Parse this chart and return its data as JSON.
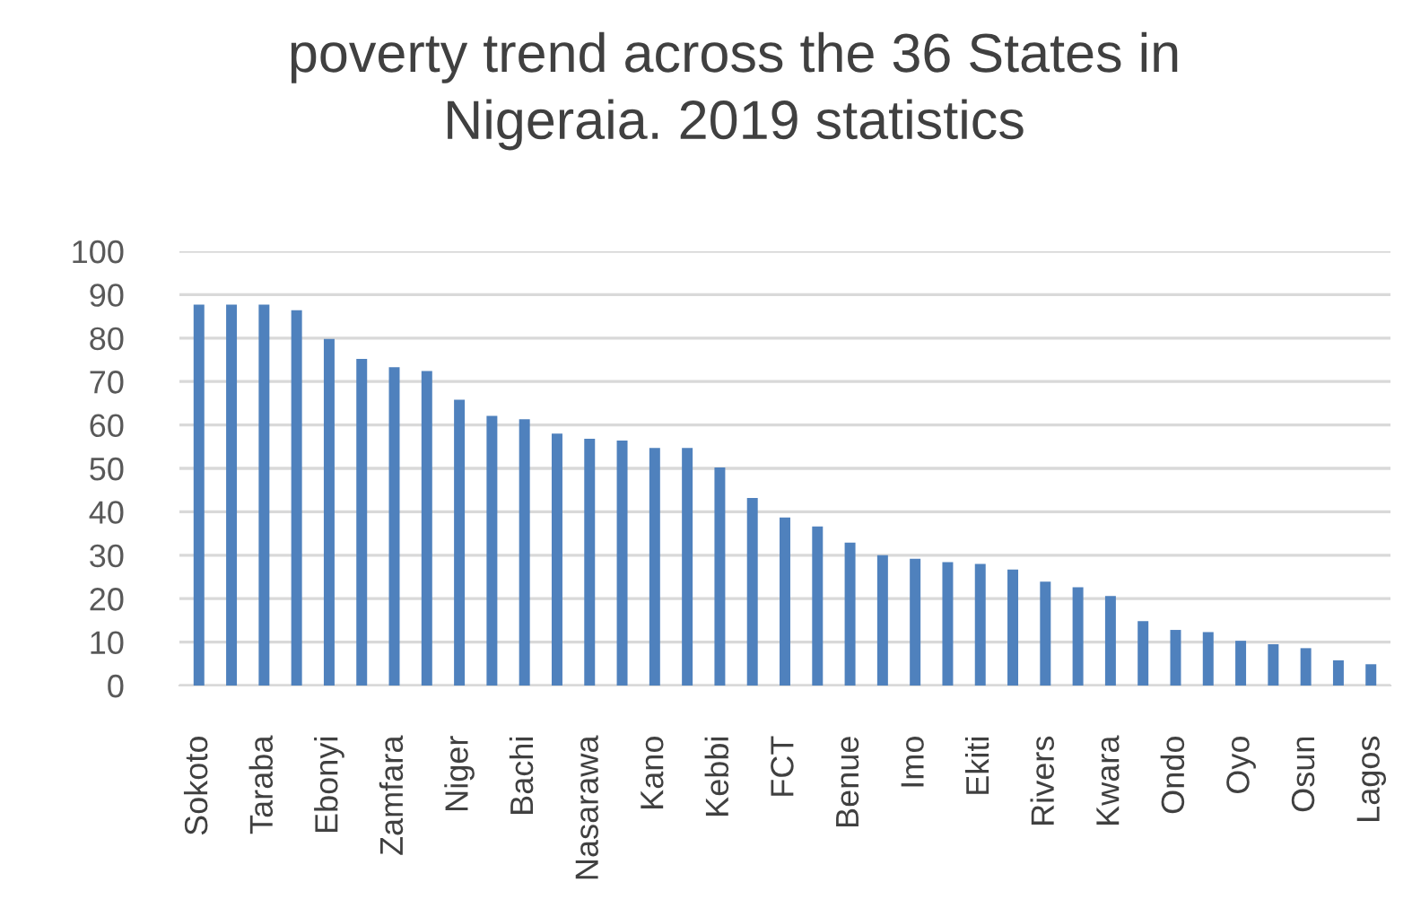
{
  "chart_data": {
    "type": "bar",
    "title": "poverty trend across the 36 States in\nNigeraia. 2019 statistics",
    "categories": [
      "Sokoto",
      null,
      "Taraba",
      null,
      "Ebonyi",
      null,
      "Zamfara",
      null,
      "Niger",
      null,
      "Bachi",
      null,
      "Nasarawa",
      null,
      "Kano",
      null,
      "Kebbi",
      null,
      "FCT",
      null,
      "Benue",
      null,
      "Imo",
      null,
      "Ekiti",
      null,
      "Rivers",
      null,
      "Kwara",
      null,
      "Ondo",
      null,
      "Oyo",
      null,
      "Osun",
      null,
      "Lagos"
    ],
    "values": [
      87.7,
      87.7,
      87.7,
      86.4,
      79.8,
      75.2,
      73.3,
      72.4,
      65.8,
      62.1,
      61.3,
      58.0,
      56.8,
      56.4,
      54.7,
      54.7,
      50.2,
      43.2,
      38.7,
      36.6,
      32.9,
      30.0,
      29.2,
      28.4,
      28.0,
      26.7,
      23.9,
      22.6,
      20.6,
      14.8,
      12.8,
      12.3,
      10.3,
      9.5,
      8.6,
      5.8,
      4.9
    ],
    "color": "#4f81bd",
    "ylim": [
      0,
      100
    ],
    "yticks": [
      0,
      10,
      20,
      30,
      40,
      50,
      60,
      70,
      80,
      90,
      100
    ],
    "grid": "y"
  }
}
